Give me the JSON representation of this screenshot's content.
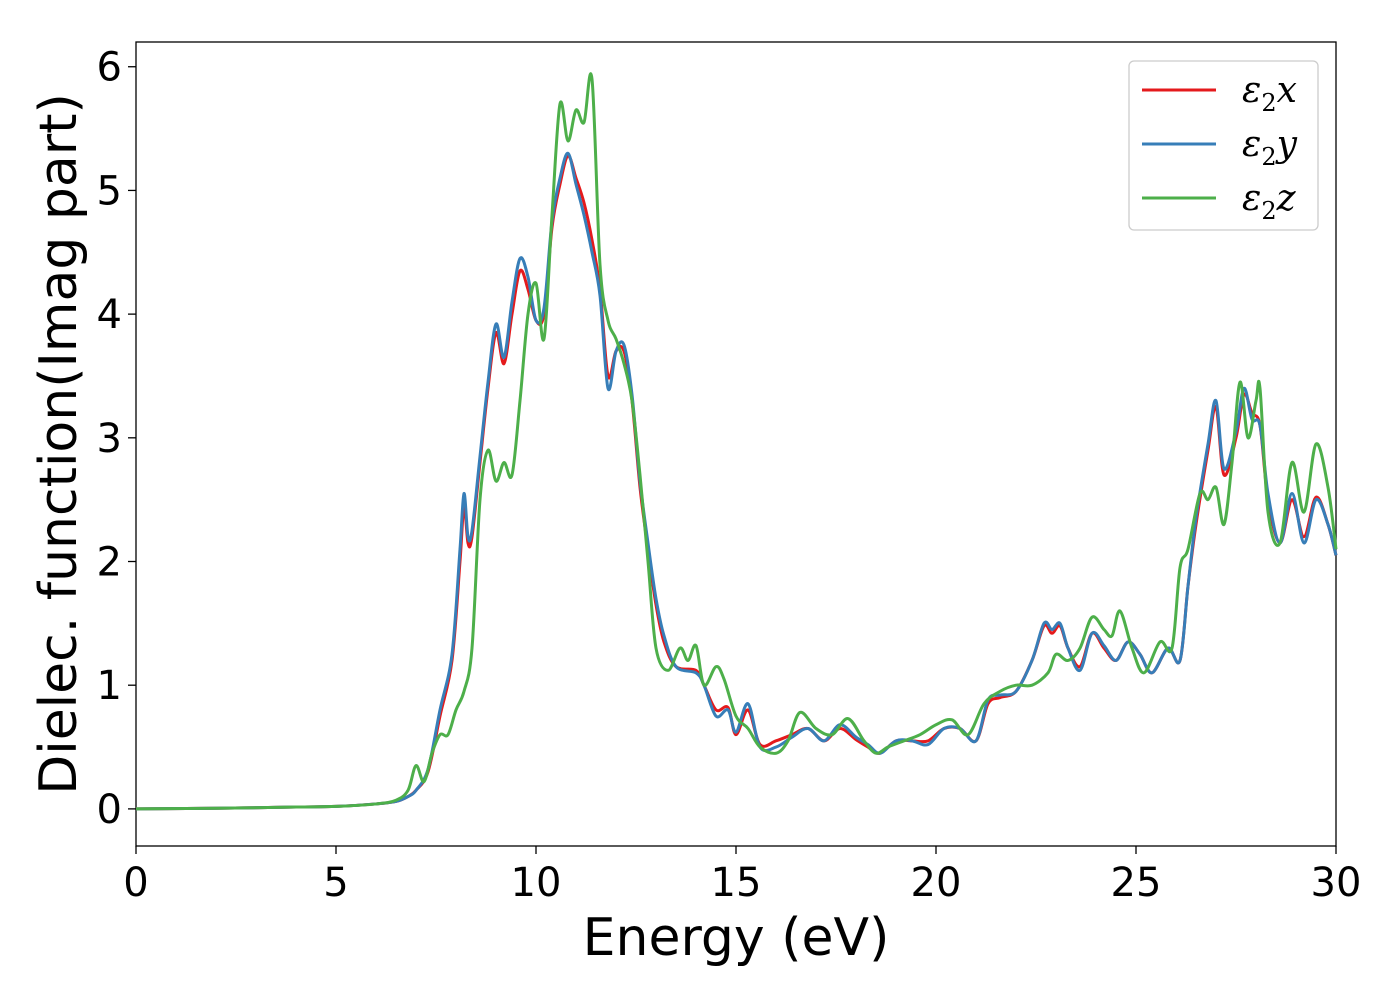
{
  "chart_data": {
    "type": "line",
    "xlabel": "Energy (eV)",
    "ylabel": "Dielec. function(Imag part)",
    "xlim": [
      0,
      30
    ],
    "ylim": [
      -0.3,
      6.2
    ],
    "xticks": [
      0,
      5,
      10,
      15,
      20,
      25,
      30
    ],
    "yticks": [
      0,
      1,
      2,
      3,
      4,
      5,
      6
    ],
    "grid": false,
    "legend_position": "top-right",
    "series": [
      {
        "name": "ε2x",
        "legend_base": "ε",
        "legend_sub": "2",
        "legend_axis": "x",
        "color": "#e41a1c",
        "x": [
          0,
          2,
          4,
          5,
          6,
          6.5,
          6.8,
          7,
          7.3,
          7.6,
          7.9,
          8.1,
          8.2,
          8.3,
          8.4,
          8.6,
          8.8,
          9.0,
          9.2,
          9.4,
          9.6,
          9.8,
          10.0,
          10.2,
          10.4,
          10.6,
          10.8,
          11.0,
          11.2,
          11.4,
          11.6,
          11.8,
          12.0,
          12.2,
          12.4,
          12.6,
          12.8,
          13.0,
          13.2,
          13.5,
          14.0,
          14.2,
          14.5,
          14.8,
          15.0,
          15.3,
          15.6,
          16.0,
          16.4,
          16.8,
          17.2,
          17.6,
          18.0,
          18.3,
          18.6,
          19.0,
          19.4,
          19.8,
          20.2,
          20.6,
          21.0,
          21.3,
          21.6,
          22.0,
          22.4,
          22.7,
          22.9,
          23.1,
          23.3,
          23.6,
          23.9,
          24.2,
          24.5,
          24.8,
          25.1,
          25.4,
          25.8,
          26.1,
          26.3,
          26.5,
          26.8,
          27.0,
          27.2,
          27.5,
          27.7,
          27.9,
          28.1,
          28.3,
          28.6,
          28.9,
          29.2,
          29.5,
          29.8,
          30.0
        ],
        "values": [
          0,
          0.005,
          0.015,
          0.02,
          0.04,
          0.06,
          0.1,
          0.15,
          0.3,
          0.75,
          1.2,
          2.0,
          2.45,
          2.15,
          2.2,
          2.8,
          3.4,
          3.85,
          3.6,
          4.0,
          4.35,
          4.2,
          3.95,
          4.0,
          4.7,
          5.05,
          5.28,
          5.1,
          4.9,
          4.6,
          4.2,
          3.5,
          3.7,
          3.7,
          3.3,
          2.6,
          2.1,
          1.65,
          1.35,
          1.15,
          1.12,
          1.0,
          0.8,
          0.82,
          0.6,
          0.8,
          0.52,
          0.55,
          0.6,
          0.65,
          0.55,
          0.65,
          0.56,
          0.5,
          0.45,
          0.55,
          0.55,
          0.55,
          0.65,
          0.65,
          0.55,
          0.85,
          0.9,
          0.95,
          1.2,
          1.48,
          1.42,
          1.48,
          1.3,
          1.15,
          1.42,
          1.3,
          1.2,
          1.35,
          1.25,
          1.1,
          1.3,
          1.2,
          1.8,
          2.3,
          2.9,
          3.25,
          2.7,
          3.0,
          3.35,
          3.2,
          3.1,
          2.5,
          2.15,
          2.5,
          2.2,
          2.52,
          2.3,
          2.05
        ]
      },
      {
        "name": "ε2y",
        "legend_base": "ε",
        "legend_sub": "2",
        "legend_axis": "y",
        "color": "#377eb8",
        "x": [
          0,
          2,
          4,
          5,
          6,
          6.5,
          6.8,
          7,
          7.3,
          7.6,
          7.9,
          8.1,
          8.2,
          8.3,
          8.4,
          8.6,
          8.8,
          9.0,
          9.2,
          9.4,
          9.6,
          9.8,
          10.0,
          10.2,
          10.4,
          10.6,
          10.8,
          11.0,
          11.2,
          11.4,
          11.6,
          11.8,
          12.0,
          12.2,
          12.4,
          12.6,
          12.8,
          13.0,
          13.2,
          13.5,
          14.0,
          14.2,
          14.5,
          14.8,
          15.0,
          15.3,
          15.6,
          16.0,
          16.4,
          16.8,
          17.2,
          17.6,
          18.0,
          18.3,
          18.6,
          19.0,
          19.4,
          19.8,
          20.2,
          20.6,
          21.0,
          21.3,
          21.6,
          22.0,
          22.4,
          22.7,
          22.9,
          23.1,
          23.3,
          23.6,
          23.9,
          24.2,
          24.5,
          24.8,
          25.1,
          25.4,
          25.8,
          26.1,
          26.3,
          26.5,
          26.8,
          27.0,
          27.2,
          27.5,
          27.7,
          27.9,
          28.1,
          28.3,
          28.6,
          28.9,
          29.2,
          29.5,
          29.8,
          30.0
        ],
        "values": [
          0,
          0.005,
          0.015,
          0.02,
          0.04,
          0.06,
          0.1,
          0.15,
          0.32,
          0.8,
          1.25,
          2.1,
          2.55,
          2.2,
          2.25,
          2.85,
          3.45,
          3.92,
          3.65,
          4.1,
          4.45,
          4.3,
          3.95,
          4.05,
          4.75,
          5.1,
          5.3,
          5.05,
          4.8,
          4.5,
          4.15,
          3.4,
          3.7,
          3.75,
          3.35,
          2.65,
          2.15,
          1.7,
          1.4,
          1.15,
          1.1,
          1.0,
          0.75,
          0.8,
          0.62,
          0.85,
          0.5,
          0.5,
          0.58,
          0.65,
          0.55,
          0.68,
          0.58,
          0.52,
          0.45,
          0.55,
          0.55,
          0.52,
          0.65,
          0.65,
          0.55,
          0.88,
          0.92,
          0.95,
          1.2,
          1.5,
          1.45,
          1.5,
          1.3,
          1.12,
          1.42,
          1.32,
          1.2,
          1.35,
          1.25,
          1.1,
          1.3,
          1.2,
          1.8,
          2.35,
          2.95,
          3.3,
          2.75,
          3.05,
          3.4,
          3.15,
          3.1,
          2.55,
          2.15,
          2.55,
          2.15,
          2.5,
          2.3,
          2.05
        ]
      },
      {
        "name": "ε2z",
        "legend_base": "ε",
        "legend_sub": "2",
        "legend_axis": "z",
        "color": "#4daf4a",
        "x": [
          0,
          2,
          4,
          5,
          6,
          6.5,
          6.8,
          7,
          7.2,
          7.4,
          7.6,
          7.8,
          8.0,
          8.2,
          8.4,
          8.6,
          8.8,
          9.0,
          9.2,
          9.4,
          9.6,
          9.8,
          10.0,
          10.2,
          10.4,
          10.6,
          10.8,
          11.0,
          11.2,
          11.4,
          11.6,
          11.8,
          12.0,
          12.2,
          12.4,
          12.6,
          12.8,
          13.0,
          13.3,
          13.6,
          13.8,
          14.0,
          14.2,
          14.5,
          14.7,
          15.0,
          15.3,
          15.6,
          16.0,
          16.3,
          16.6,
          17.0,
          17.4,
          17.8,
          18.2,
          18.5,
          18.8,
          19.2,
          19.6,
          20.0,
          20.4,
          20.8,
          21.2,
          21.6,
          22.0,
          22.4,
          22.8,
          23.0,
          23.3,
          23.6,
          23.9,
          24.2,
          24.4,
          24.6,
          24.9,
          25.2,
          25.6,
          25.9,
          26.1,
          26.3,
          26.6,
          26.8,
          27.0,
          27.2,
          27.4,
          27.6,
          27.8,
          28.0,
          28.1,
          28.3,
          28.6,
          28.9,
          29.2,
          29.5,
          29.8,
          30.0
        ],
        "values": [
          0,
          0.005,
          0.015,
          0.02,
          0.04,
          0.07,
          0.15,
          0.35,
          0.22,
          0.45,
          0.6,
          0.6,
          0.8,
          0.95,
          1.3,
          2.5,
          2.9,
          2.65,
          2.8,
          2.7,
          3.3,
          4.0,
          4.25,
          3.8,
          4.8,
          5.7,
          5.4,
          5.65,
          5.55,
          5.9,
          4.4,
          3.95,
          3.8,
          3.6,
          3.3,
          2.7,
          2.0,
          1.3,
          1.12,
          1.3,
          1.2,
          1.32,
          1.0,
          1.15,
          1.05,
          0.75,
          0.65,
          0.5,
          0.45,
          0.55,
          0.78,
          0.65,
          0.6,
          0.73,
          0.55,
          0.45,
          0.5,
          0.55,
          0.6,
          0.68,
          0.72,
          0.6,
          0.85,
          0.95,
          1.0,
          1.0,
          1.1,
          1.25,
          1.2,
          1.3,
          1.55,
          1.45,
          1.4,
          1.6,
          1.3,
          1.1,
          1.35,
          1.3,
          1.95,
          2.1,
          2.55,
          2.5,
          2.6,
          2.3,
          2.8,
          3.45,
          3.0,
          3.3,
          3.4,
          2.4,
          2.15,
          2.8,
          2.4,
          2.95,
          2.6,
          2.1
        ]
      }
    ]
  }
}
